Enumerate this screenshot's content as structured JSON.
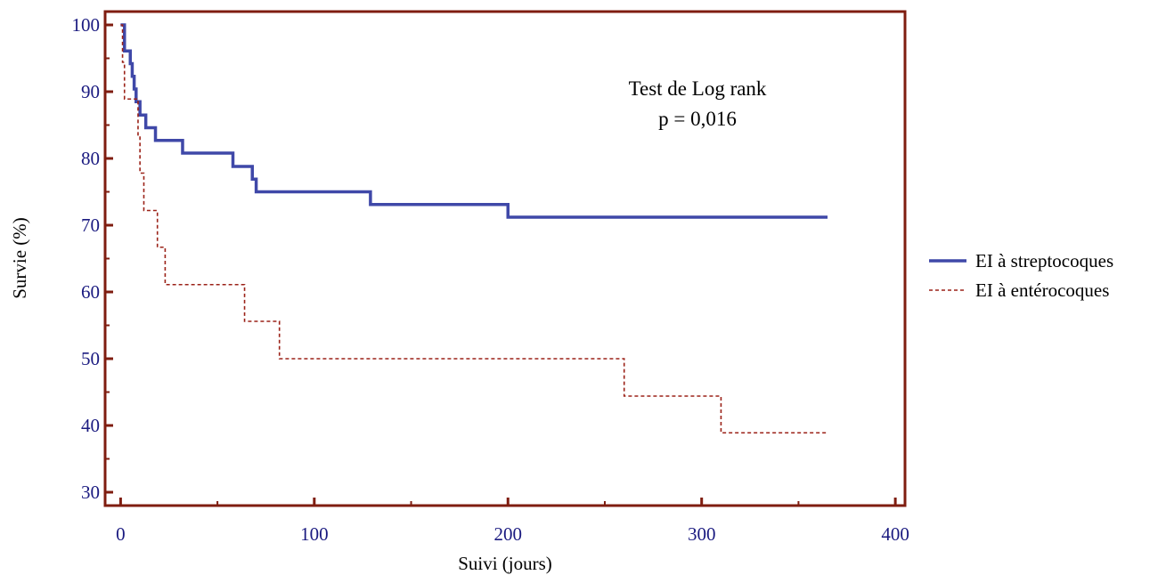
{
  "chart_data": {
    "type": "line",
    "step": true,
    "xlabel": "Suivi (jours)",
    "ylabel": "Survie (%)",
    "xlim": [
      -8,
      405
    ],
    "ylim": [
      28,
      102
    ],
    "x_ticks": [
      0,
      100,
      200,
      300,
      400
    ],
    "y_ticks": [
      30,
      40,
      50,
      60,
      70,
      80,
      90,
      100
    ],
    "grid": false,
    "legend_position": "right",
    "annotations": [
      "Test de Log rank",
      "p = 0,016"
    ],
    "colors": {
      "frame": "#7f1d10",
      "tick_labels": "#1a1a80",
      "series_1": "#3f48a8",
      "series_2": "#9b2218"
    },
    "series": [
      {
        "name": "EI à streptocoques",
        "line_style": "solid",
        "x": [
          0,
          2,
          5,
          6,
          7,
          8,
          10,
          13,
          18,
          32,
          58,
          68,
          70,
          129,
          200,
          365
        ],
        "y": [
          100,
          96.1,
          94.2,
          92.3,
          90.4,
          88.5,
          86.5,
          84.6,
          82.7,
          80.8,
          78.8,
          76.9,
          75.0,
          73.1,
          71.2,
          71.2
        ]
      },
      {
        "name": "EI à entérocoques",
        "line_style": "dashed",
        "x": [
          0,
          1,
          2,
          9,
          10,
          12,
          19,
          23,
          64,
          82,
          260,
          310,
          365
        ],
        "y": [
          100,
          94.4,
          88.9,
          83.3,
          77.8,
          72.2,
          66.7,
          61.1,
          55.6,
          50.0,
          44.4,
          38.9,
          38.9
        ]
      }
    ]
  }
}
